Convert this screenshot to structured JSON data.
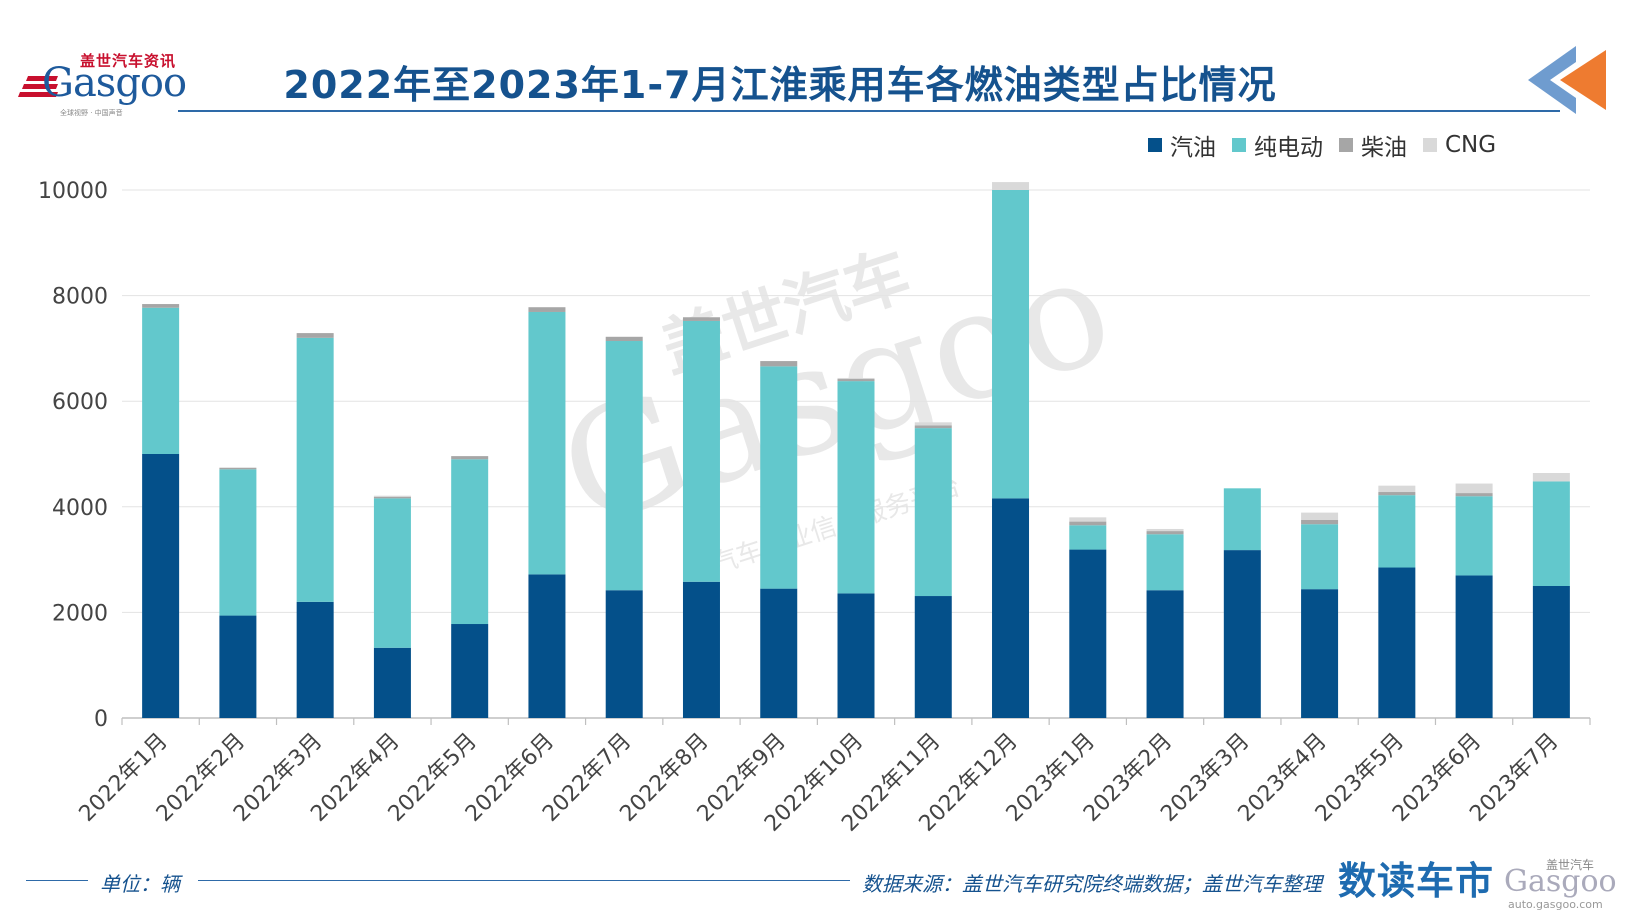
{
  "logo": {
    "cn": "盖世汽车资讯",
    "en": "Gasgoo",
    "sub": "全球视野 · 中国声音"
  },
  "title": "2022年至2023年1-7月江淮乘用车各燃油类型占比情况",
  "legend": [
    {
      "label": "汽油",
      "color": "#04508a"
    },
    {
      "label": "纯电动",
      "color": "#62c8cc"
    },
    {
      "label": "柴油",
      "color": "#a6a6a6"
    },
    {
      "label": "CNG",
      "color": "#d9d9d9"
    }
  ],
  "footer": {
    "unit": "单位：辆",
    "source": "数据来源：盖世汽车研究院终端数据；盖世汽车整理",
    "brand": "数读车市",
    "brand_logo_cn": "盖世汽车",
    "brand_logo_en": "Gasgoo",
    "brand_url": "auto.gasgoo.com"
  },
  "watermark": {
    "cn": "盖世汽车",
    "en": "Gasgoo",
    "sub": "汽车产业信息服务平台"
  },
  "chart_data": {
    "type": "bar",
    "stacked": true,
    "title": "2022年至2023年1-7月江淮乘用车各燃油类型占比情况",
    "xlabel": "",
    "ylabel": "",
    "ylim": [
      0,
      10000
    ],
    "yticks": [
      0,
      2000,
      4000,
      6000,
      8000,
      10000
    ],
    "grid": true,
    "legend_position": "top-right",
    "categories": [
      "2022年1月",
      "2022年2月",
      "2022年3月",
      "2022年4月",
      "2022年5月",
      "2022年6月",
      "2022年7月",
      "2022年8月",
      "2022年9月",
      "2022年10月",
      "2022年11月",
      "2022年12月",
      "2023年1月",
      "2023年2月",
      "2023年3月",
      "2023年4月",
      "2023年5月",
      "2023年6月",
      "2023年7月"
    ],
    "series": [
      {
        "name": "汽油",
        "color": "#04508a",
        "values": [
          5000,
          1940,
          2200,
          1330,
          1780,
          2720,
          2420,
          2580,
          2450,
          2360,
          2310,
          4160,
          3190,
          2420,
          3180,
          2440,
          2850,
          2700,
          2500
        ]
      },
      {
        "name": "纯电动",
        "color": "#62c8cc",
        "values": [
          2770,
          2770,
          5000,
          2830,
          3120,
          4970,
          4720,
          4940,
          4210,
          4020,
          3180,
          5840,
          460,
          1060,
          1170,
          1230,
          1370,
          1500,
          1980
        ]
      },
      {
        "name": "柴油",
        "color": "#a6a6a6",
        "values": [
          70,
          30,
          90,
          30,
          60,
          90,
          80,
          70,
          100,
          40,
          50,
          0,
          70,
          60,
          0,
          80,
          60,
          60,
          0
        ]
      },
      {
        "name": "CNG",
        "color": "#d9d9d9",
        "values": [
          0,
          0,
          0,
          20,
          0,
          0,
          0,
          0,
          0,
          20,
          60,
          150,
          80,
          40,
          0,
          140,
          120,
          180,
          160
        ]
      }
    ]
  }
}
